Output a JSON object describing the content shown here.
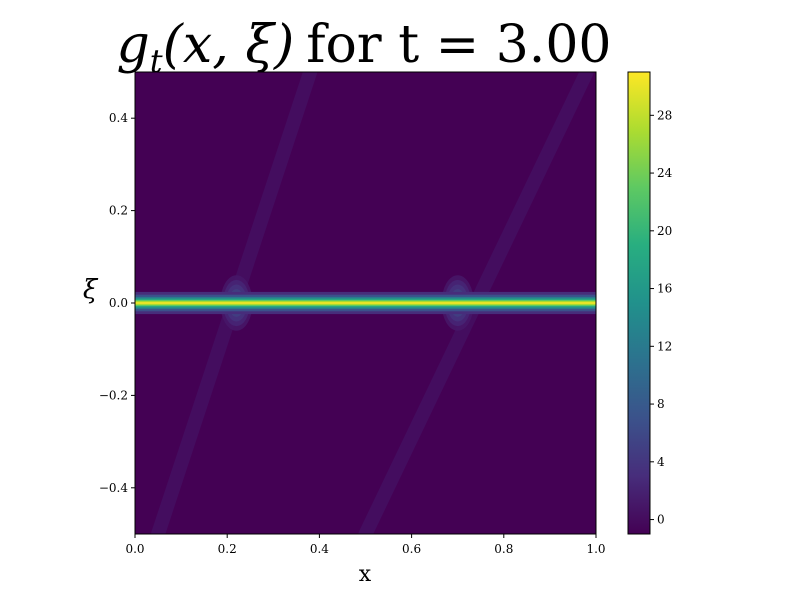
{
  "chart_data": {
    "type": "heatmap",
    "title": {
      "g": "g",
      "t": "t",
      "args": "(x, ξ)",
      "text": "for t = 3.00"
    },
    "xlabel": "x",
    "ylabel": "ξ",
    "xlim": [
      0.0,
      1.0
    ],
    "ylim": [
      -0.5,
      0.5
    ],
    "x_ticks": [
      {
        "value": 0.0,
        "label": "0.0"
      },
      {
        "value": 0.2,
        "label": "0.2"
      },
      {
        "value": 0.4,
        "label": "0.4"
      },
      {
        "value": 0.6,
        "label": "0.6"
      },
      {
        "value": 0.8,
        "label": "0.8"
      },
      {
        "value": 1.0,
        "label": "1.0"
      }
    ],
    "y_ticks": [
      {
        "value": 0.4,
        "label": "0.4"
      },
      {
        "value": 0.2,
        "label": "0.2"
      },
      {
        "value": 0.0,
        "label": "0.0"
      },
      {
        "value": -0.2,
        "label": "−0.2"
      },
      {
        "value": -0.4,
        "label": "−0.4"
      }
    ],
    "colorbar": {
      "colormap": "viridis",
      "range": [
        -1,
        31
      ],
      "ticks": [
        {
          "value": 28,
          "label": "28"
        },
        {
          "value": 24,
          "label": "24"
        },
        {
          "value": 20,
          "label": "20"
        },
        {
          "value": 16,
          "label": "16"
        },
        {
          "value": 12,
          "label": "12"
        },
        {
          "value": 8,
          "label": "8"
        },
        {
          "value": 4,
          "label": "4"
        },
        {
          "value": 0,
          "label": "0"
        }
      ]
    },
    "field": {
      "background_value": 0,
      "band": {
        "xi_center": 0.0,
        "peak_value": 30,
        "width_xi": 0.012
      },
      "hotspots": [
        {
          "x": 0.22,
          "xi": 0.0,
          "peak_value": 8,
          "spread_xi": 0.06,
          "spread_x": 0.035
        },
        {
          "x": 0.7,
          "xi": 0.0,
          "peak_value": 8,
          "spread_xi": 0.06,
          "spread_x": 0.035
        }
      ],
      "faint_streaks": [
        {
          "from": [
            0.05,
            -0.5
          ],
          "to": [
            0.38,
            0.5
          ],
          "value": 1
        },
        {
          "from": [
            0.5,
            -0.5
          ],
          "to": [
            0.98,
            0.5
          ],
          "value": 1
        }
      ]
    }
  }
}
